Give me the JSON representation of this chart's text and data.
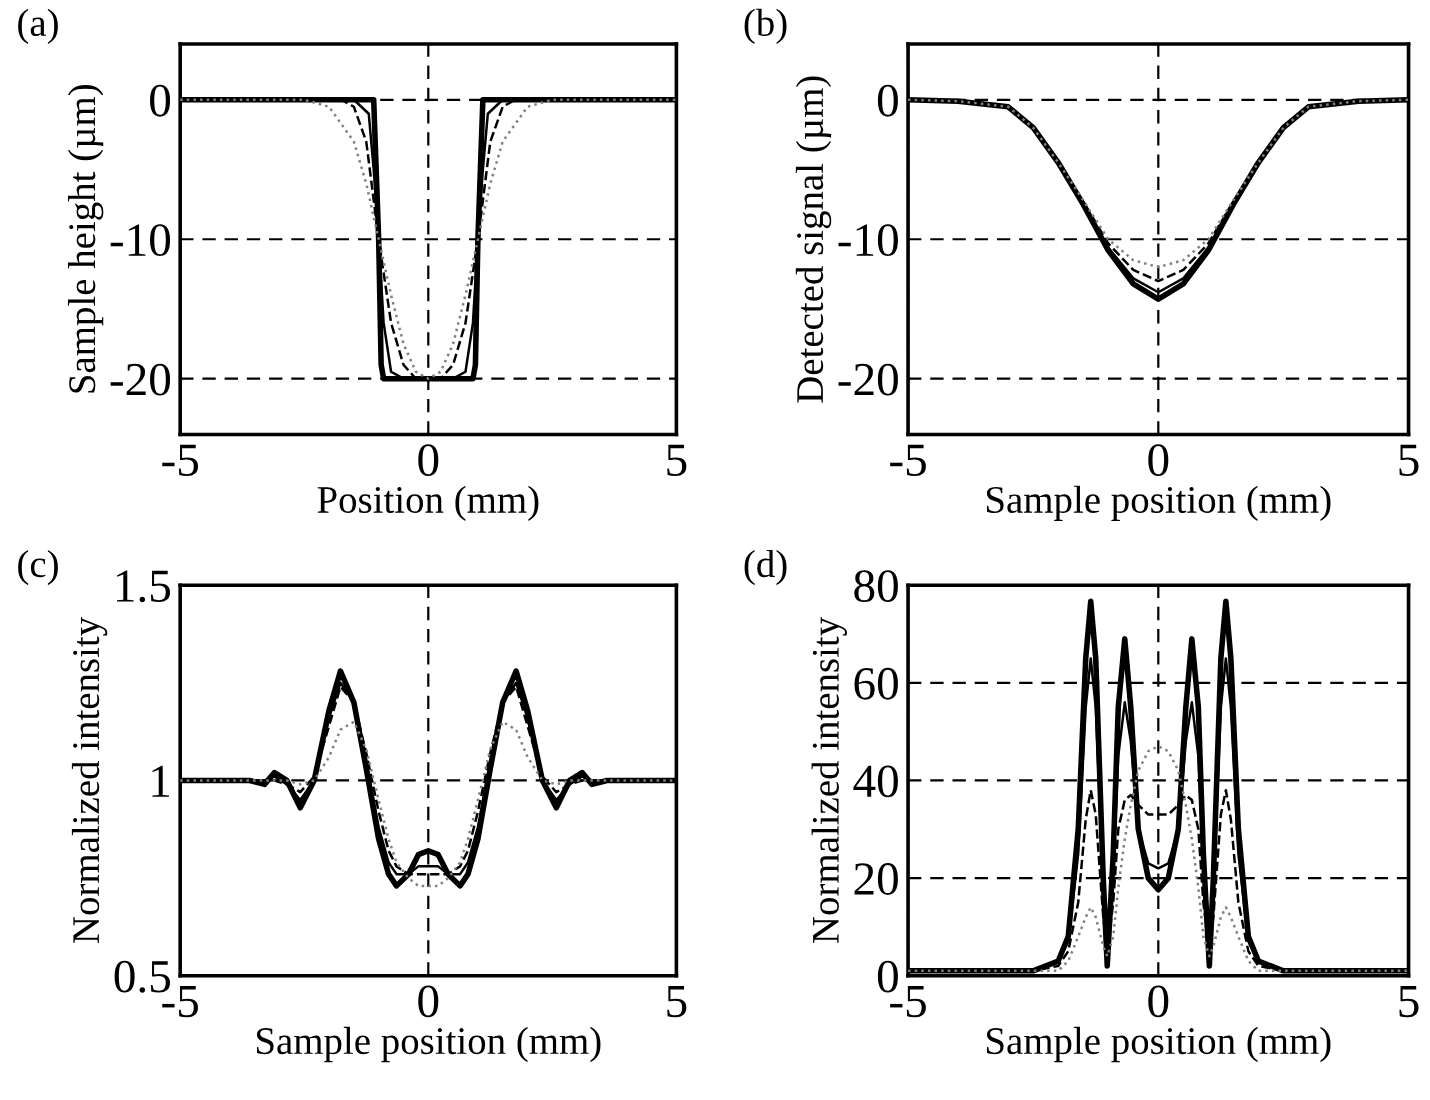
{
  "chart_data": [
    {
      "type": "line",
      "title": "(a)",
      "xlabel": "Position (mm)",
      "ylabel": "Sample height (µm)",
      "xlim": [
        -5,
        5
      ],
      "ylim": [
        -24,
        4
      ],
      "xticks": [
        -5,
        0,
        5
      ],
      "yticks": [
        -20,
        -10,
        0
      ],
      "grid": true,
      "legend": false,
      "series": [
        {
          "color": "#000000",
          "line_style": "solid",
          "x": [
            -5,
            -1.1,
            -1.05,
            -1.0,
            -0.95,
            -0.9,
            0,
            0.9,
            0.95,
            1.0,
            1.05,
            1.1,
            5
          ],
          "values": [
            0,
            0,
            -5,
            -10,
            -19,
            -20,
            -20,
            -20,
            -19,
            -10,
            -5,
            0,
            0
          ]
        },
        {
          "color": "#000000",
          "line_style": "solid",
          "x": [
            -5,
            -1.5,
            -1.2,
            -1.1,
            -1.0,
            -0.9,
            -0.75,
            -0.5,
            0,
            0.5,
            0.75,
            0.9,
            1.0,
            1.1,
            1.2,
            1.5,
            5
          ],
          "values": [
            0,
            0,
            -1,
            -5,
            -10,
            -16,
            -19.5,
            -20,
            -20,
            -20,
            -19.5,
            -16,
            -10,
            -5,
            -1,
            0,
            0
          ]
        },
        {
          "color": "#000000",
          "line_style": "dashed",
          "x": [
            -5,
            -1.75,
            -1.5,
            -1.25,
            -1.0,
            -0.75,
            -0.5,
            -0.25,
            0,
            0.25,
            0.5,
            0.75,
            1.0,
            1.25,
            1.5,
            1.75,
            5
          ],
          "values": [
            0,
            0,
            -0.5,
            -3,
            -10,
            -16,
            -19,
            -20,
            -20,
            -20,
            -19,
            -16,
            -10,
            -3,
            -0.5,
            0,
            0
          ]
        },
        {
          "color": "#808080",
          "line_style": "dotted",
          "x": [
            -5,
            -2.5,
            -2,
            -1.5,
            -1.25,
            -1,
            -0.75,
            -0.5,
            -0.25,
            0,
            0.25,
            0.5,
            0.75,
            1,
            1.25,
            1.5,
            2,
            2.5,
            5
          ],
          "values": [
            0,
            0,
            -0.5,
            -3,
            -6,
            -10,
            -14,
            -17.5,
            -19.5,
            -20,
            -19.5,
            -17.5,
            -14,
            -10,
            -6,
            -3,
            -0.5,
            0,
            0
          ]
        }
      ]
    },
    {
      "type": "line",
      "title": "(b)",
      "xlabel": "Sample position (mm)",
      "ylabel": "Detected signal (µm)",
      "xlim": [
        -5,
        5
      ],
      "ylim": [
        -24,
        4
      ],
      "xticks": [
        -5,
        0,
        5
      ],
      "yticks": [
        -20,
        -10,
        0
      ],
      "grid": true,
      "legend": false,
      "series": [
        {
          "color": "#000000",
          "line_style": "solid",
          "x": [
            -5,
            -4,
            -3,
            -2.5,
            -2,
            -1.5,
            -1,
            -0.5,
            0,
            0.5,
            1,
            1.5,
            2,
            2.5,
            3,
            4,
            5
          ],
          "values": [
            0,
            -0.1,
            -0.5,
            -2,
            -4.5,
            -7.5,
            -10.8,
            -13.2,
            -14.3,
            -13.2,
            -10.8,
            -7.5,
            -4.5,
            -2,
            -0.5,
            -0.1,
            0
          ]
        },
        {
          "color": "#000000",
          "line_style": "solid",
          "x": [
            -5,
            -4,
            -3,
            -2.5,
            -2,
            -1.5,
            -1,
            -0.5,
            0,
            0.5,
            1,
            1.5,
            2,
            2.5,
            3,
            4,
            5
          ],
          "values": [
            0,
            -0.1,
            -0.5,
            -2,
            -4.5,
            -7.4,
            -10.6,
            -12.8,
            -13.8,
            -12.8,
            -10.6,
            -7.4,
            -4.5,
            -2,
            -0.5,
            -0.1,
            0
          ]
        },
        {
          "color": "#000000",
          "line_style": "dashed",
          "x": [
            -5,
            -4,
            -3,
            -2.5,
            -2,
            -1.5,
            -1,
            -0.5,
            0,
            0.5,
            1,
            1.5,
            2,
            2.5,
            3,
            4,
            5
          ],
          "values": [
            0,
            -0.1,
            -0.5,
            -2,
            -4.5,
            -7.3,
            -10.3,
            -12.2,
            -13,
            -12.2,
            -10.3,
            -7.3,
            -4.5,
            -2,
            -0.5,
            -0.1,
            0
          ]
        },
        {
          "color": "#808080",
          "line_style": "dotted",
          "x": [
            -5,
            -4,
            -3,
            -2.5,
            -2,
            -1.5,
            -1,
            -0.5,
            0,
            0.5,
            1,
            1.5,
            2,
            2.5,
            3,
            4,
            5
          ],
          "values": [
            0,
            -0.1,
            -0.5,
            -2,
            -4.5,
            -7.2,
            -10,
            -11.5,
            -12,
            -11.5,
            -10,
            -7.2,
            -4.5,
            -2,
            -0.5,
            -0.1,
            0
          ]
        }
      ]
    },
    {
      "type": "line",
      "title": "(c)",
      "xlabel": "Sample position (mm)",
      "ylabel": "Normalized intensity",
      "xlim": [
        -5,
        5
      ],
      "ylim": [
        0.5,
        1.5
      ],
      "xticks": [
        -5,
        0,
        5
      ],
      "yticks": [
        0.5,
        1,
        1.5
      ],
      "grid": true,
      "legend": false,
      "series": [
        {
          "color": "#000000",
          "line_style": "solid",
          "x": [
            -5,
            -3.6,
            -3.3,
            -3.1,
            -2.85,
            -2.58,
            -2.3,
            -2.0,
            -1.77,
            -1.5,
            -1.25,
            -1.0,
            -0.8,
            -0.64,
            -0.4,
            -0.2,
            0,
            0.2,
            0.4,
            0.64,
            0.8,
            1.0,
            1.25,
            1.5,
            1.77,
            2.0,
            2.3,
            2.58,
            2.85,
            3.1,
            3.3,
            3.6,
            5
          ],
          "values": [
            1,
            1,
            0.99,
            1.02,
            1.0,
            0.93,
            1.0,
            1.18,
            1.28,
            1.2,
            1.03,
            0.85,
            0.76,
            0.73,
            0.76,
            0.81,
            0.82,
            0.81,
            0.76,
            0.73,
            0.76,
            0.85,
            1.03,
            1.2,
            1.28,
            1.18,
            1.0,
            0.93,
            1.0,
            1.02,
            0.99,
            1,
            1
          ]
        },
        {
          "color": "#000000",
          "line_style": "solid",
          "x": [
            -5,
            -3.6,
            -3.3,
            -3.1,
            -2.85,
            -2.58,
            -2.3,
            -2.0,
            -1.77,
            -1.5,
            -1.25,
            -1.0,
            -0.8,
            -0.64,
            -0.4,
            -0.2,
            0,
            0.2,
            0.4,
            0.64,
            0.8,
            1.0,
            1.25,
            1.5,
            1.77,
            2.0,
            2.3,
            2.58,
            2.85,
            3.1,
            3.3,
            3.6,
            5
          ],
          "values": [
            1,
            1,
            1.0,
            1.01,
            0.99,
            0.95,
            1.0,
            1.16,
            1.25,
            1.2,
            1.05,
            0.88,
            0.79,
            0.76,
            0.76,
            0.78,
            0.78,
            0.78,
            0.76,
            0.76,
            0.79,
            0.88,
            1.05,
            1.2,
            1.25,
            1.16,
            1.0,
            0.95,
            0.99,
            1.01,
            1.0,
            1,
            1
          ]
        },
        {
          "color": "#000000",
          "line_style": "dashed",
          "x": [
            -5,
            -3.6,
            -3.3,
            -3.1,
            -2.85,
            -2.58,
            -2.3,
            -2.0,
            -1.77,
            -1.5,
            -1.25,
            -1.0,
            -0.8,
            -0.64,
            -0.4,
            -0.2,
            0,
            0.2,
            0.4,
            0.64,
            0.8,
            1.0,
            1.25,
            1.5,
            1.77,
            2.0,
            2.3,
            2.58,
            2.85,
            3.1,
            3.3,
            3.6,
            5
          ],
          "values": [
            1,
            1,
            1,
            1.0,
            0.99,
            0.97,
            1.01,
            1.14,
            1.24,
            1.2,
            1.07,
            0.92,
            0.82,
            0.78,
            0.76,
            0.76,
            0.76,
            0.76,
            0.76,
            0.78,
            0.82,
            0.92,
            1.07,
            1.2,
            1.24,
            1.14,
            1.01,
            0.97,
            0.99,
            1.0,
            1,
            1,
            1
          ]
        },
        {
          "color": "#808080",
          "line_style": "dotted",
          "x": [
            -5,
            -3.6,
            -3.3,
            -3.1,
            -2.85,
            -2.58,
            -2.3,
            -2.0,
            -1.77,
            -1.5,
            -1.25,
            -1.0,
            -0.8,
            -0.64,
            -0.4,
            -0.2,
            0,
            0.2,
            0.4,
            0.64,
            0.8,
            1.0,
            1.25,
            1.5,
            1.77,
            2.0,
            2.3,
            2.58,
            2.85,
            3.1,
            3.3,
            3.6,
            5
          ],
          "values": [
            1,
            1,
            1,
            1,
            1,
            0.99,
            1.0,
            1.06,
            1.13,
            1.15,
            1.08,
            0.95,
            0.85,
            0.79,
            0.75,
            0.73,
            0.73,
            0.73,
            0.75,
            0.79,
            0.85,
            0.95,
            1.08,
            1.15,
            1.13,
            1.06,
            1.0,
            0.99,
            1,
            1,
            1,
            1,
            1
          ]
        }
      ]
    },
    {
      "type": "line",
      "title": "(d)",
      "xlabel": "Sample position (mm)",
      "ylabel": "Normalized intensity",
      "xlim": [
        -5,
        5
      ],
      "ylim": [
        0,
        80
      ],
      "xticks": [
        -5,
        0,
        5
      ],
      "yticks": [
        0,
        20,
        40,
        60,
        80
      ],
      "grid": true,
      "legend": false,
      "series": [
        {
          "color": "#000000",
          "line_style": "solid",
          "x": [
            -5,
            -2.5,
            -2.0,
            -1.8,
            -1.6,
            -1.45,
            -1.35,
            -1.25,
            -1.1,
            -1.02,
            -0.9,
            -0.8,
            -0.67,
            -0.55,
            -0.4,
            -0.2,
            0,
            0.2,
            0.4,
            0.55,
            0.67,
            0.8,
            0.9,
            1.02,
            1.1,
            1.25,
            1.35,
            1.45,
            1.6,
            1.8,
            2.0,
            2.5,
            5
          ],
          "values": [
            1,
            1,
            3,
            8,
            30,
            65,
            76.7,
            65,
            20,
            2,
            25,
            55,
            69,
            55,
            30,
            20,
            17.6,
            20,
            30,
            55,
            69,
            55,
            25,
            2,
            20,
            65,
            76.7,
            65,
            30,
            8,
            3,
            1,
            1
          ]
        },
        {
          "color": "#000000",
          "line_style": "solid",
          "x": [
            -5,
            -2.5,
            -2.0,
            -1.8,
            -1.6,
            -1.45,
            -1.35,
            -1.25,
            -1.1,
            -1.02,
            -0.9,
            -0.8,
            -0.67,
            -0.55,
            -0.4,
            -0.2,
            0,
            0.2,
            0.4,
            0.55,
            0.67,
            0.8,
            0.9,
            1.02,
            1.1,
            1.25,
            1.35,
            1.45,
            1.6,
            1.8,
            2.0,
            2.5,
            5
          ],
          "values": [
            1,
            1,
            3,
            7,
            25,
            55,
            65,
            55,
            18,
            3,
            22,
            45,
            56,
            48,
            30,
            23,
            22,
            23,
            30,
            48,
            56,
            45,
            22,
            3,
            18,
            55,
            65,
            55,
            25,
            7,
            3,
            1,
            1
          ]
        },
        {
          "color": "#000000",
          "line_style": "dashed",
          "x": [
            -5,
            -2.5,
            -2.0,
            -1.8,
            -1.6,
            -1.45,
            -1.35,
            -1.25,
            -1.1,
            -1.02,
            -0.9,
            -0.8,
            -0.67,
            -0.55,
            -0.4,
            -0.2,
            0,
            0.2,
            0.4,
            0.55,
            0.67,
            0.8,
            0.9,
            1.02,
            1.1,
            1.25,
            1.35,
            1.45,
            1.6,
            1.8,
            2.0,
            2.5,
            5
          ],
          "values": [
            1,
            1,
            2,
            5,
            15,
            32,
            38,
            33,
            12,
            5,
            15,
            30,
            36,
            37,
            35,
            33,
            33,
            33,
            35,
            37,
            36,
            30,
            15,
            5,
            12,
            33,
            38,
            32,
            15,
            5,
            2,
            1,
            1
          ]
        },
        {
          "color": "#808080",
          "line_style": "dotted",
          "x": [
            -5,
            -2.5,
            -2.0,
            -1.8,
            -1.6,
            -1.45,
            -1.35,
            -1.25,
            -1.1,
            -1.02,
            -0.9,
            -0.8,
            -0.67,
            -0.55,
            -0.4,
            -0.2,
            0,
            0.2,
            0.4,
            0.55,
            0.67,
            0.8,
            0.9,
            1.02,
            1.1,
            1.25,
            1.35,
            1.45,
            1.6,
            1.8,
            2.0,
            2.5,
            5
          ],
          "values": [
            1,
            1,
            1,
            3,
            8,
            12,
            14,
            12,
            6,
            4,
            8,
            18,
            28,
            35,
            42,
            46,
            47,
            46,
            42,
            35,
            28,
            18,
            8,
            4,
            6,
            12,
            14,
            12,
            8,
            3,
            1,
            1,
            1
          ]
        }
      ]
    }
  ]
}
